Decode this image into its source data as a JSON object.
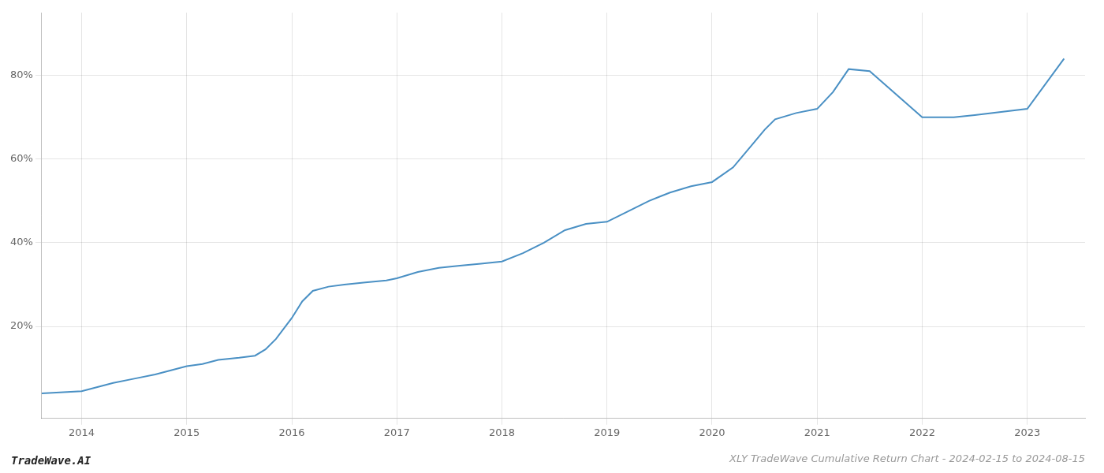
{
  "chart_data": {
    "type": "line",
    "title": "XLY TradeWave Cumulative Return Chart - 2024-02-15 to 2024-08-15",
    "annotations": [
      "TradeWave.AI"
    ],
    "color": "#4a90c4",
    "grid": true,
    "x": [
      2013.62,
      2014.0,
      2014.15,
      2014.3,
      2014.5,
      2014.7,
      2014.85,
      2015.0,
      2015.15,
      2015.3,
      2015.5,
      2015.65,
      2015.75,
      2015.85,
      2016.0,
      2016.1,
      2016.2,
      2016.35,
      2016.5,
      2016.7,
      2016.9,
      2017.0,
      2017.2,
      2017.4,
      2017.6,
      2017.8,
      2018.0,
      2018.2,
      2018.4,
      2018.6,
      2018.8,
      2019.0,
      2019.2,
      2019.4,
      2019.5,
      2019.6,
      2019.8,
      2020.0,
      2020.2,
      2020.4,
      2020.5,
      2020.6,
      2020.8,
      2021.0,
      2021.15,
      2021.3,
      2021.5,
      2022.0,
      2022.3,
      2022.5,
      2023.0,
      2023.35
    ],
    "values": [
      4,
      4.5,
      5.5,
      6.5,
      7.5,
      8.5,
      9.5,
      10.5,
      11.0,
      12.0,
      12.5,
      13.0,
      14.5,
      17.0,
      22.0,
      26.0,
      28.5,
      29.5,
      30.0,
      30.5,
      31.0,
      31.5,
      33.0,
      34.0,
      34.5,
      35.0,
      35.5,
      37.5,
      40.0,
      43.0,
      44.5,
      45.0,
      47.5,
      50.0,
      51.0,
      52.0,
      53.5,
      54.5,
      58.0,
      64.0,
      67.0,
      69.5,
      71.0,
      72.0,
      76.0,
      81.5,
      81.0,
      70.0,
      70.0,
      70.5,
      72.0,
      84.0
    ],
    "xlim": [
      2013.62,
      2023.55
    ],
    "xticks": [
      2014,
      2015,
      2016,
      2017,
      2018,
      2019,
      2020,
      2021,
      2022,
      2023
    ],
    "ylim": [
      -2,
      95
    ],
    "yticks": [
      {
        "value": 20,
        "label": "20%"
      },
      {
        "value": 40,
        "label": "40%"
      },
      {
        "value": 60,
        "label": "60%"
      },
      {
        "value": 80,
        "label": "80%"
      }
    ]
  }
}
